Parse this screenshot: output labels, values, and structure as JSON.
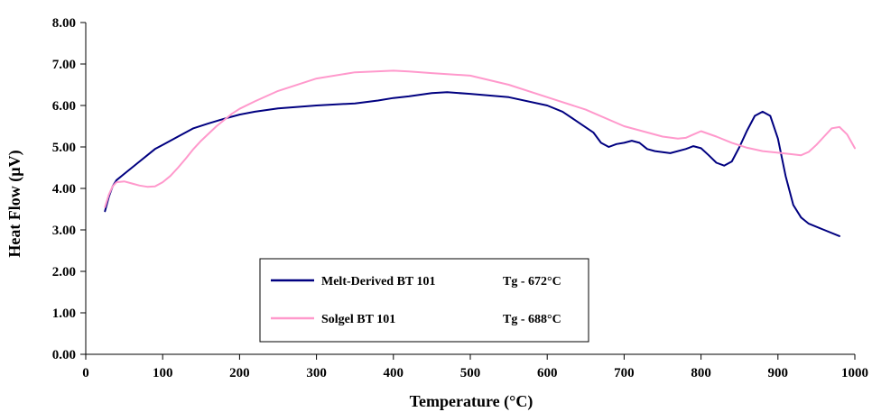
{
  "chart_data": {
    "type": "line",
    "title": "",
    "xlabel": "Temperature (°C)",
    "ylabel": "Heat Flow (µV)",
    "xlim": [
      0,
      1000
    ],
    "ylim": [
      0,
      8
    ],
    "xticks": [
      "0",
      "100",
      "200",
      "300",
      "400",
      "500",
      "600",
      "700",
      "800",
      "900",
      "1000"
    ],
    "yticks": [
      "0.00",
      "1.00",
      "2.00",
      "3.00",
      "4.00",
      "5.00",
      "6.00",
      "7.00",
      "8.00"
    ],
    "grid": false,
    "legend_position": "bottom-center",
    "series": [
      {
        "name": "Melt-Derived BT 101",
        "tg": "Tg - 672°C",
        "color": "#000080",
        "x": [
          25,
          30,
          35,
          40,
          50,
          60,
          70,
          80,
          90,
          100,
          120,
          140,
          160,
          180,
          200,
          220,
          250,
          300,
          350,
          380,
          400,
          420,
          450,
          470,
          500,
          550,
          600,
          620,
          640,
          660,
          670,
          680,
          690,
          700,
          710,
          720,
          730,
          740,
          760,
          780,
          790,
          800,
          810,
          820,
          830,
          840,
          850,
          860,
          870,
          880,
          890,
          900,
          910,
          920,
          930,
          940,
          960,
          980
        ],
        "y": [
          3.45,
          3.8,
          4.05,
          4.2,
          4.35,
          4.5,
          4.65,
          4.8,
          4.95,
          5.05,
          5.25,
          5.45,
          5.57,
          5.68,
          5.78,
          5.85,
          5.93,
          6.0,
          6.05,
          6.12,
          6.18,
          6.22,
          6.3,
          6.32,
          6.28,
          6.2,
          6.0,
          5.85,
          5.6,
          5.35,
          5.1,
          5.0,
          5.07,
          5.1,
          5.15,
          5.1,
          4.95,
          4.9,
          4.85,
          4.95,
          5.02,
          4.97,
          4.8,
          4.62,
          4.55,
          4.65,
          5.0,
          5.4,
          5.75,
          5.85,
          5.75,
          5.2,
          4.3,
          3.6,
          3.3,
          3.15,
          3.0,
          2.85
        ]
      },
      {
        "name": "Solgel BT 101",
        "tg": "Tg - 688°C",
        "color": "#ff99cc",
        "x": [
          25,
          30,
          35,
          40,
          50,
          60,
          70,
          80,
          90,
          100,
          110,
          120,
          130,
          140,
          150,
          170,
          190,
          200,
          220,
          250,
          300,
          350,
          400,
          420,
          450,
          500,
          550,
          600,
          650,
          700,
          750,
          770,
          780,
          790,
          800,
          820,
          840,
          860,
          880,
          900,
          920,
          930,
          940,
          950,
          960,
          970,
          980,
          990,
          1000
        ],
        "y": [
          3.55,
          3.85,
          4.05,
          4.15,
          4.17,
          4.12,
          4.07,
          4.04,
          4.05,
          4.15,
          4.3,
          4.5,
          4.72,
          4.95,
          5.15,
          5.5,
          5.8,
          5.92,
          6.1,
          6.35,
          6.65,
          6.8,
          6.84,
          6.82,
          6.78,
          6.72,
          6.5,
          6.2,
          5.9,
          5.5,
          5.25,
          5.2,
          5.22,
          5.3,
          5.38,
          5.25,
          5.1,
          4.98,
          4.9,
          4.86,
          4.82,
          4.8,
          4.88,
          5.05,
          5.25,
          5.45,
          5.48,
          5.3,
          4.97
        ]
      }
    ]
  }
}
